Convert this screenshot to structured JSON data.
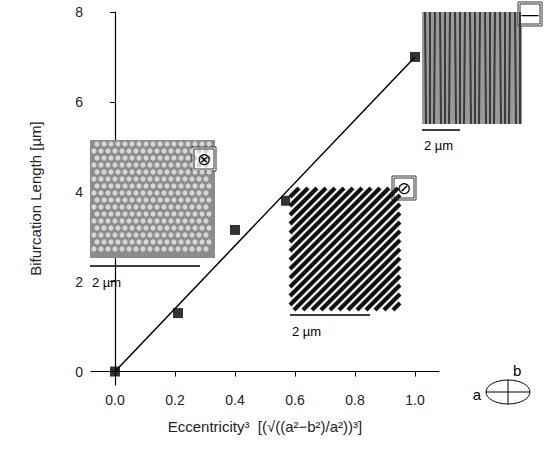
{
  "chart_data": {
    "type": "scatter",
    "x_label": "Eccentricity³  [(√((a²−b²)/a²))³]",
    "y_label": "Bifurcation Length [µm]",
    "x": [
      0.0,
      0.21,
      0.4,
      0.57,
      1.0
    ],
    "values": [
      0.0,
      1.3,
      3.15,
      3.8,
      7.0
    ],
    "color": "#000000",
    "marker": "square",
    "fit": {
      "x": [
        0.0,
        1.0
      ],
      "y": [
        0.0,
        7.0
      ],
      "line_style": "solid",
      "color": "#000000"
    },
    "xlim": [
      -0.08,
      1.08
    ],
    "xticks": [
      {
        "value": 0,
        "label": "0.0"
      },
      {
        "value": 0.2,
        "label": "0.2"
      },
      {
        "value": 0.4,
        "label": "0.4"
      },
      {
        "value": 0.6,
        "label": "0.6"
      },
      {
        "value": 0.8,
        "label": "0.8"
      },
      {
        "value": 1,
        "label": "1.0"
      }
    ],
    "ylim": [
      -0.3,
      8
    ],
    "yticks": [
      0,
      2,
      4,
      6,
      8
    ],
    "grid": false,
    "insets": [
      {
        "icon": "⊗",
        "scale_label": "2 µm"
      },
      {
        "icon": "⊘",
        "scale_label": "2 µm"
      },
      {
        "icon": "—",
        "scale_label": "2 µm"
      }
    ],
    "ellipse_labels": [
      "a",
      "b"
    ]
  }
}
